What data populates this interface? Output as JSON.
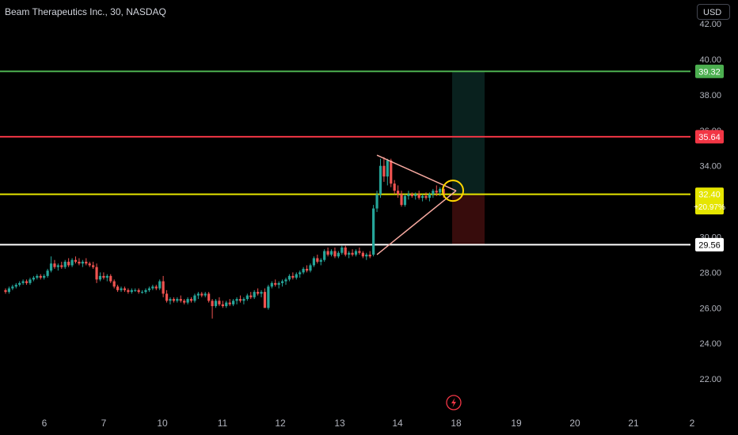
{
  "header": {
    "title": "Beam Therapeutics Inc., 30, NASDAQ",
    "currency": "USD"
  },
  "colors": {
    "background": "#000000",
    "up": "#26a69a",
    "down": "#ef5350",
    "target_line": "#4caf50",
    "resistance_line": "#f23645",
    "current_line": "#e5e500",
    "support_line": "#ffffff",
    "triangle": "#f7a9a0",
    "highlight_circle": "#ffd600",
    "axis_text": "#b2b5be"
  },
  "chart_data": {
    "type": "candlestick",
    "yticks": [
      "22.00",
      "24.00",
      "26.00",
      "28.00",
      "30.00",
      "32.00",
      "34.00",
      "36.00",
      "38.00",
      "40.00",
      "42.00"
    ],
    "xticks": [
      "6",
      "7",
      "10",
      "11",
      "12",
      "13",
      "14",
      "18",
      "19",
      "20",
      "21",
      "2"
    ],
    "ylim": [
      20.8,
      42.3
    ],
    "price_lines": [
      {
        "name": "target",
        "value": 39.32,
        "label": "39.32",
        "color": "#4caf50"
      },
      {
        "name": "resistance",
        "value": 35.64,
        "label": "35.64",
        "color": "#f23645"
      },
      {
        "name": "current",
        "value": 32.4,
        "label": "32.40",
        "sublabel": "+20.97%",
        "color": "#e5e500"
      },
      {
        "name": "support",
        "value": 29.56,
        "label": "29.56",
        "color": "#ffffff"
      }
    ],
    "position": {
      "entry": 32.4,
      "target": 39.32,
      "stop": 29.56
    },
    "candles": [
      [
        27.0,
        27.1,
        26.8,
        26.9
      ],
      [
        26.9,
        27.2,
        26.8,
        27.1
      ],
      [
        27.1,
        27.3,
        27.0,
        27.2
      ],
      [
        27.2,
        27.4,
        27.1,
        27.3
      ],
      [
        27.3,
        27.5,
        27.2,
        27.4
      ],
      [
        27.4,
        27.6,
        27.3,
        27.5
      ],
      [
        27.5,
        27.6,
        27.3,
        27.4
      ],
      [
        27.4,
        27.7,
        27.3,
        27.6
      ],
      [
        27.6,
        27.8,
        27.5,
        27.7
      ],
      [
        27.7,
        27.9,
        27.6,
        27.8
      ],
      [
        27.8,
        27.9,
        27.6,
        27.7
      ],
      [
        27.7,
        27.9,
        27.6,
        27.8
      ],
      [
        27.8,
        28.2,
        27.7,
        28.1
      ],
      [
        28.1,
        28.9,
        28.0,
        28.5
      ],
      [
        28.5,
        28.7,
        28.2,
        28.3
      ],
      [
        28.3,
        28.5,
        28.1,
        28.4
      ],
      [
        28.4,
        28.6,
        28.2,
        28.3
      ],
      [
        28.3,
        28.7,
        28.2,
        28.6
      ],
      [
        28.6,
        28.8,
        28.3,
        28.4
      ],
      [
        28.4,
        28.8,
        28.3,
        28.7
      ],
      [
        28.7,
        28.9,
        28.5,
        28.6
      ],
      [
        28.6,
        28.8,
        28.4,
        28.5
      ],
      [
        28.5,
        28.7,
        28.3,
        28.6
      ],
      [
        28.6,
        28.8,
        28.4,
        28.5
      ],
      [
        28.5,
        28.6,
        28.3,
        28.4
      ],
      [
        28.4,
        28.6,
        28.2,
        28.3
      ],
      [
        28.3,
        28.5,
        27.4,
        27.6
      ],
      [
        27.6,
        28.0,
        27.5,
        27.8
      ],
      [
        27.8,
        28.0,
        27.6,
        27.7
      ],
      [
        27.7,
        27.9,
        27.5,
        27.8
      ],
      [
        27.8,
        27.9,
        27.4,
        27.5
      ],
      [
        27.5,
        27.6,
        27.1,
        27.2
      ],
      [
        27.2,
        27.3,
        26.9,
        27.0
      ],
      [
        27.0,
        27.2,
        26.9,
        27.1
      ],
      [
        27.1,
        27.2,
        26.9,
        27.0
      ],
      [
        27.0,
        27.1,
        26.8,
        26.9
      ],
      [
        26.9,
        27.1,
        26.8,
        27.0
      ],
      [
        27.0,
        27.1,
        26.9,
        27.0
      ],
      [
        27.0,
        27.1,
        26.8,
        26.9
      ],
      [
        26.9,
        27.0,
        26.8,
        26.9
      ],
      [
        26.9,
        27.1,
        26.8,
        27.0
      ],
      [
        27.0,
        27.2,
        26.9,
        27.1
      ],
      [
        27.1,
        27.3,
        27.0,
        27.2
      ],
      [
        27.2,
        27.3,
        27.0,
        27.1
      ],
      [
        27.1,
        27.6,
        27.0,
        27.5
      ],
      [
        27.5,
        27.8,
        26.6,
        26.8
      ],
      [
        26.8,
        27.0,
        26.3,
        26.4
      ],
      [
        26.4,
        26.6,
        26.2,
        26.5
      ],
      [
        26.5,
        26.6,
        26.3,
        26.4
      ],
      [
        26.4,
        26.6,
        26.3,
        26.5
      ],
      [
        26.5,
        26.7,
        26.3,
        26.4
      ],
      [
        26.4,
        26.5,
        26.2,
        26.3
      ],
      [
        26.3,
        26.6,
        26.2,
        26.5
      ],
      [
        26.5,
        26.6,
        26.3,
        26.4
      ],
      [
        26.4,
        26.8,
        26.3,
        26.7
      ],
      [
        26.7,
        26.9,
        26.5,
        26.8
      ],
      [
        26.8,
        26.9,
        26.6,
        26.7
      ],
      [
        26.7,
        26.9,
        26.6,
        26.8
      ],
      [
        26.8,
        26.9,
        26.3,
        26.4
      ],
      [
        26.4,
        26.5,
        25.4,
        26.1
      ],
      [
        26.1,
        26.5,
        26.0,
        26.4
      ],
      [
        26.4,
        26.6,
        26.1,
        26.2
      ],
      [
        26.2,
        26.4,
        26.0,
        26.1
      ],
      [
        26.1,
        26.4,
        26.0,
        26.3
      ],
      [
        26.3,
        26.5,
        26.1,
        26.2
      ],
      [
        26.2,
        26.5,
        26.1,
        26.4
      ],
      [
        26.4,
        26.6,
        26.2,
        26.5
      ],
      [
        26.5,
        26.7,
        26.3,
        26.4
      ],
      [
        26.4,
        26.6,
        26.2,
        26.5
      ],
      [
        26.5,
        26.8,
        26.4,
        26.7
      ],
      [
        26.7,
        26.9,
        26.5,
        26.6
      ],
      [
        26.6,
        27.0,
        26.5,
        26.9
      ],
      [
        26.9,
        27.1,
        26.7,
        26.8
      ],
      [
        26.8,
        27.0,
        26.6,
        26.9
      ],
      [
        26.9,
        27.1,
        26.0,
        26.0
      ],
      [
        26.0,
        27.3,
        25.9,
        27.2
      ],
      [
        27.2,
        27.5,
        27.1,
        27.4
      ],
      [
        27.4,
        27.6,
        27.2,
        27.3
      ],
      [
        27.3,
        27.5,
        27.1,
        27.4
      ],
      [
        27.4,
        27.6,
        27.2,
        27.5
      ],
      [
        27.5,
        27.7,
        27.3,
        27.6
      ],
      [
        27.6,
        27.9,
        27.5,
        27.8
      ],
      [
        27.8,
        28.0,
        27.6,
        27.7
      ],
      [
        27.7,
        28.0,
        27.6,
        27.9
      ],
      [
        27.9,
        28.1,
        27.7,
        28.0
      ],
      [
        28.0,
        28.3,
        27.9,
        28.2
      ],
      [
        28.2,
        28.4,
        28.0,
        28.1
      ],
      [
        28.1,
        28.5,
        28.0,
        28.4
      ],
      [
        28.4,
        28.9,
        28.3,
        28.8
      ],
      [
        28.8,
        29.0,
        28.5,
        28.6
      ],
      [
        28.6,
        28.8,
        28.4,
        28.7
      ],
      [
        28.7,
        29.3,
        28.6,
        29.2
      ],
      [
        29.2,
        29.4,
        28.9,
        29.0
      ],
      [
        29.0,
        29.3,
        28.9,
        29.2
      ],
      [
        29.2,
        29.4,
        28.8,
        28.9
      ],
      [
        28.9,
        29.2,
        28.8,
        29.1
      ],
      [
        29.1,
        29.5,
        29.0,
        29.4
      ],
      [
        29.4,
        29.5,
        28.9,
        29.0
      ],
      [
        29.0,
        29.2,
        28.8,
        29.1
      ],
      [
        29.1,
        29.3,
        28.9,
        29.0
      ],
      [
        29.0,
        29.3,
        28.9,
        29.2
      ],
      [
        29.2,
        29.4,
        29.0,
        29.1
      ],
      [
        29.1,
        29.2,
        28.8,
        28.9
      ],
      [
        28.9,
        29.1,
        28.7,
        29.0
      ],
      [
        29.0,
        29.2,
        28.8,
        28.9
      ],
      [
        29.0,
        31.8,
        28.9,
        31.6
      ],
      [
        31.6,
        32.6,
        31.4,
        32.4
      ],
      [
        32.4,
        34.4,
        32.2,
        34.0
      ],
      [
        34.0,
        34.5,
        33.1,
        33.4
      ],
      [
        33.4,
        34.4,
        32.9,
        34.3
      ],
      [
        34.3,
        34.4,
        32.8,
        33.0
      ],
      [
        33.0,
        33.2,
        32.4,
        32.6
      ],
      [
        32.6,
        32.9,
        32.2,
        32.4
      ],
      [
        32.4,
        32.6,
        31.7,
        31.8
      ],
      [
        31.8,
        32.4,
        31.7,
        32.3
      ],
      [
        32.3,
        32.6,
        32.1,
        32.4
      ],
      [
        32.4,
        32.5,
        32.2,
        32.3
      ],
      [
        32.3,
        32.5,
        32.1,
        32.4
      ],
      [
        32.4,
        32.6,
        32.1,
        32.2
      ],
      [
        32.2,
        32.4,
        32.0,
        32.3
      ],
      [
        32.3,
        32.5,
        32.1,
        32.2
      ],
      [
        32.2,
        32.5,
        32.0,
        32.4
      ],
      [
        32.4,
        32.7,
        32.2,
        32.6
      ],
      [
        32.6,
        32.9,
        32.3,
        32.5
      ],
      [
        32.5,
        32.8,
        32.3,
        32.7
      ],
      [
        32.7,
        32.9,
        32.2,
        32.4
      ]
    ]
  }
}
